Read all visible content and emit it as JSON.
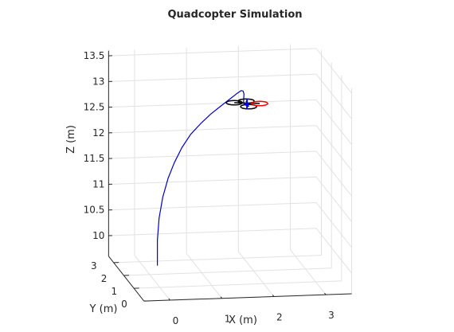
{
  "chart_data": {
    "type": "line",
    "title": "Quadcopter Simulation",
    "projection": "3d",
    "xlabel": "X (m)",
    "ylabel": "Y (m)",
    "zlabel": "Z (m)",
    "xlim": [
      -0.5,
      3.5
    ],
    "ylim": [
      0,
      3.5
    ],
    "zlim": [
      9.6,
      13.6
    ],
    "x_ticks": [
      "0",
      "1",
      "2",
      "3"
    ],
    "y_ticks": [
      "0",
      "1",
      "2",
      "3"
    ],
    "z_ticks": [
      "10",
      "10.5",
      "11",
      "11.5",
      "12",
      "12.5",
      "13",
      "13.5"
    ],
    "grid": true,
    "series": [
      {
        "name": "",
        "color": "#0000cc",
        "x": [
          -0.12,
          -0.12,
          -0.09,
          -0.02,
          0.08,
          0.2,
          0.35,
          0.52,
          0.72,
          0.92,
          1.12,
          1.3,
          1.45,
          1.56,
          1.62,
          1.66,
          1.68,
          1.7,
          1.73,
          1.76
        ],
        "y": [
          0.63,
          0.63,
          0.62,
          0.61,
          0.61,
          0.61,
          0.62,
          0.63,
          0.65,
          0.68,
          0.72,
          0.78,
          0.86,
          0.97,
          1.09,
          1.21,
          1.33,
          1.45,
          1.5,
          1.5
        ],
        "z": [
          10.12,
          10.61,
          11.04,
          11.45,
          11.81,
          12.11,
          12.4,
          12.65,
          12.85,
          13.02,
          13.16,
          13.27,
          13.35,
          13.38,
          13.34,
          13.25,
          13.13,
          13.02,
          12.98,
          12.99
        ]
      }
    ],
    "quadcopter": {
      "center": [
        1.76,
        1.5,
        12.99
      ],
      "body_color": "#000000",
      "front_rotor_color": "#ff0000",
      "marker_color": "#0000ff"
    }
  }
}
